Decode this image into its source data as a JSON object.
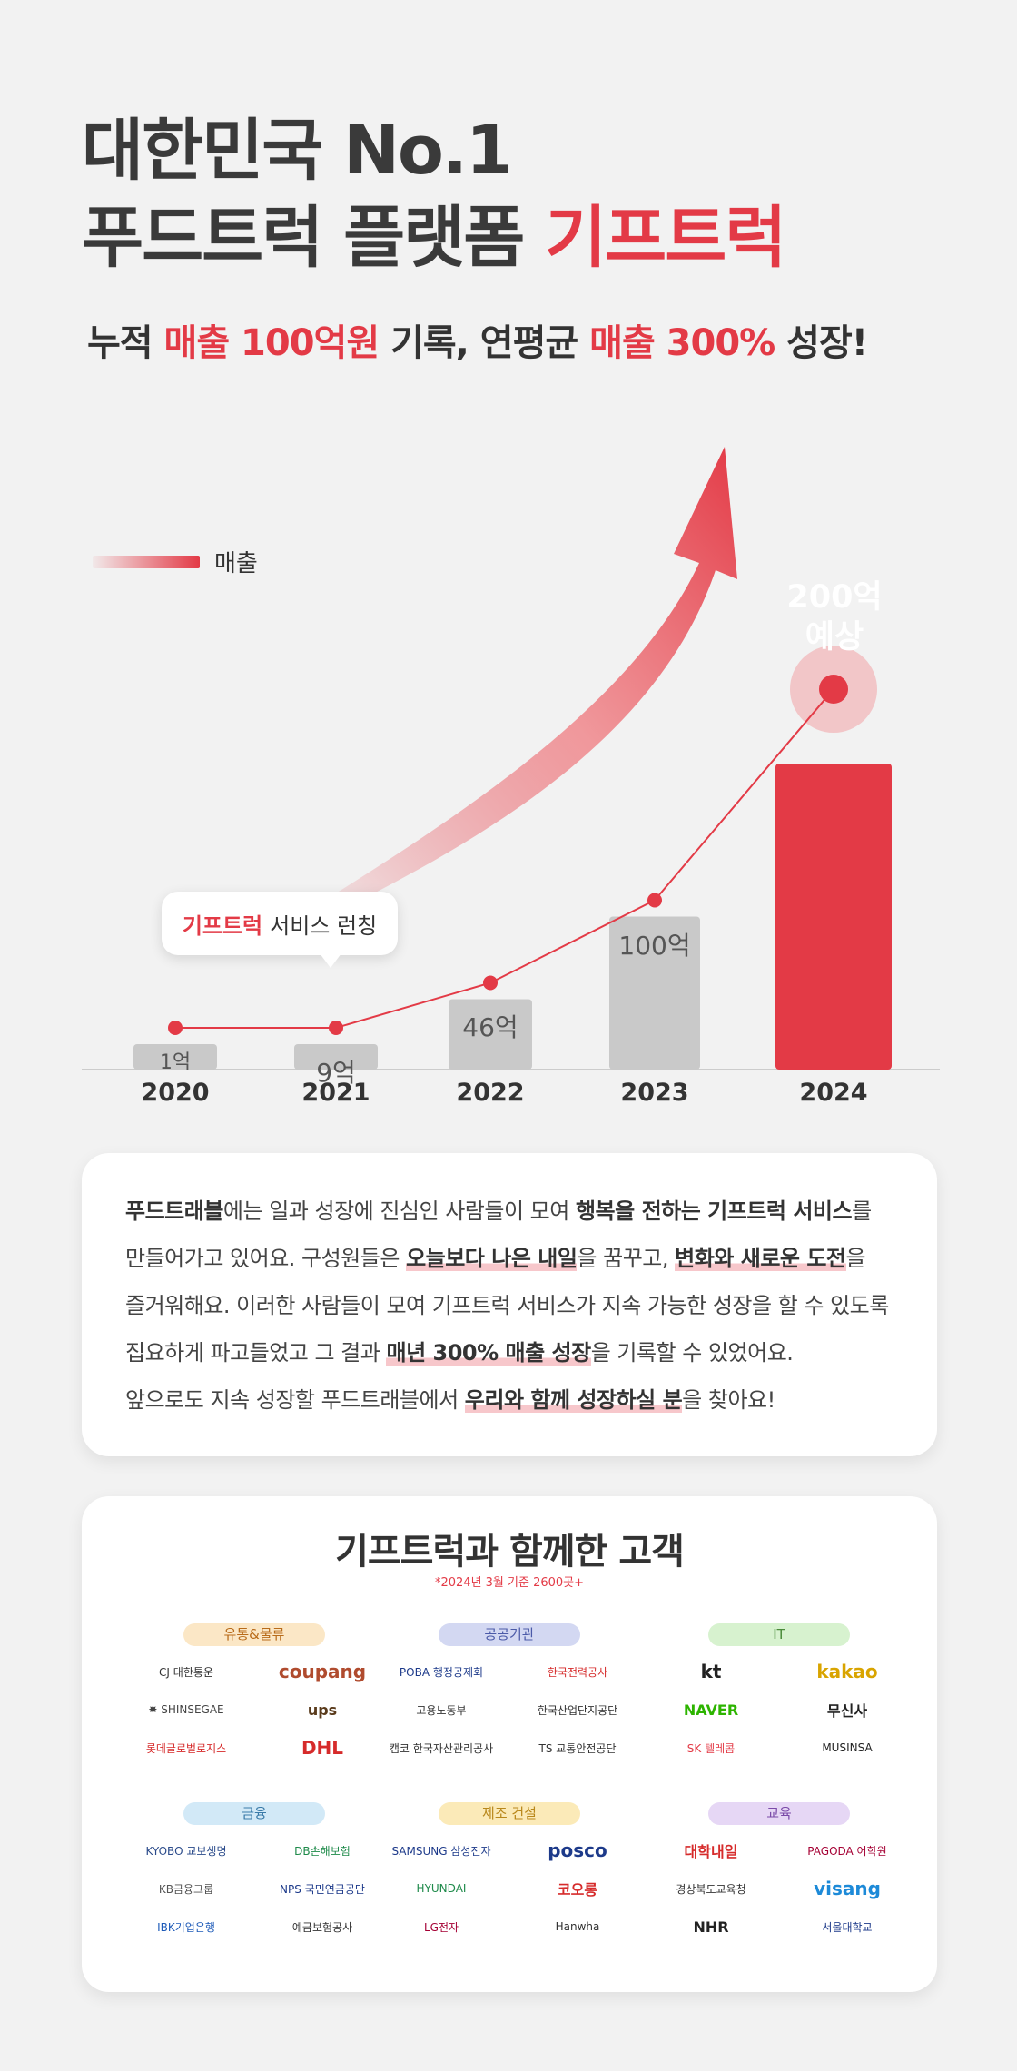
{
  "hero": {
    "line1": "대한민국 No.1",
    "line2_prefix": "푸드트럭 플랫폼 ",
    "line2_accent": "기프트럭"
  },
  "subtitle": {
    "p1": "누적 ",
    "r1": "매출 100억원",
    "p2": " 기록, 연평균 ",
    "r2": "매출 300%",
    "p3": " 성장!"
  },
  "colors": {
    "accent": "#e33a46",
    "bar": "#c9c9c9",
    "card_bg": "#ffffff",
    "page_bg": "#f2f2f2"
  },
  "chart_data": {
    "type": "bar",
    "categories": [
      "2020",
      "2021",
      "2022",
      "2023",
      "2024"
    ],
    "values": [
      1,
      9,
      46,
      100,
      200
    ],
    "value_labels": [
      "1억",
      "9억",
      "46억",
      "100억",
      "200억 예상"
    ],
    "forecast_label": [
      "200억",
      "예상"
    ],
    "legend": "매출",
    "annotation_brand": "기프트럭",
    "annotation_text": "서비스 런칭",
    "highlight_category": "2024"
  },
  "story": {
    "l1": [
      {
        "t": "푸드트래블",
        "s": "b"
      },
      {
        "t": "에는 일과 성장에 진심인 사람들이 모여 ",
        "s": ""
      },
      {
        "t": "행복을 전하는 기프트럭 서비스",
        "s": "b"
      },
      {
        "t": "를",
        "s": ""
      }
    ],
    "l2": [
      {
        "t": "만들어가고 있어요. 구성원들은 ",
        "s": ""
      },
      {
        "t": "오늘보다 나은 내일",
        "s": "u"
      },
      {
        "t": "을 꿈꾸고, ",
        "s": ""
      },
      {
        "t": "변화와 새로운 도전",
        "s": "u"
      },
      {
        "t": "을",
        "s": ""
      }
    ],
    "l3": [
      {
        "t": "즐거워해요. 이러한 사람들이 모여 기프트럭 서비스가 지속 가능한 성장을 할 수 있도록",
        "s": ""
      }
    ],
    "l4": [
      {
        "t": "집요하게 파고들었고 그 결과 ",
        "s": ""
      },
      {
        "t": "매년 300% 매출 성장",
        "s": "u"
      },
      {
        "t": "을 기록할 수 있었어요.",
        "s": ""
      }
    ],
    "l5": [
      {
        "t": "앞으로도 지속 성장할 푸드트래블에서 ",
        "s": ""
      },
      {
        "t": "우리와 함께 성장하실 분",
        "s": "u"
      },
      {
        "t": "을 찾아요!",
        "s": ""
      }
    ]
  },
  "clients": {
    "title": "기프트럭과 함께한 고객",
    "note": "*2024년 3월 기준 2600곳+",
    "categories": [
      {
        "label": "유통&물류",
        "pill_bg": "#fbe7c6",
        "pill_fg": "#b86b1a",
        "logos": [
          {
            "text": "CJ 대한통운",
            "color": "#333",
            "cls": ""
          },
          {
            "text": "coupang",
            "color": "#b04b2e",
            "cls": "lg-big"
          },
          {
            "text": "✸ SHINSEGAE",
            "color": "#444",
            "cls": ""
          },
          {
            "text": "ups",
            "color": "#5a3b1c",
            "cls": "lg-mid"
          },
          {
            "text": "롯데글로벌로지스",
            "color": "#d62b2b",
            "cls": ""
          },
          {
            "text": "DHL",
            "color": "#d62b2b",
            "cls": "lg-big"
          }
        ]
      },
      {
        "label": "공공기관",
        "pill_bg": "#d3d8f2",
        "pill_fg": "#4b5aa8",
        "logos": [
          {
            "text": "POBA 행정공제회",
            "color": "#1d3a8a",
            "cls": ""
          },
          {
            "text": "한국전력공사",
            "color": "#d62b2b",
            "cls": ""
          },
          {
            "text": "고용노동부",
            "color": "#333",
            "cls": ""
          },
          {
            "text": "한국산업단지공단",
            "color": "#333",
            "cls": ""
          },
          {
            "text": "캠코 한국자산관리공사",
            "color": "#333",
            "cls": ""
          },
          {
            "text": "TS 교통안전공단",
            "color": "#333",
            "cls": ""
          }
        ]
      },
      {
        "label": "IT",
        "pill_bg": "#d7f2cf",
        "pill_fg": "#4a8a3a",
        "logos": [
          {
            "text": "kt",
            "color": "#222",
            "cls": "lg-big"
          },
          {
            "text": "kakao",
            "color": "#d9a400",
            "cls": "lg-big"
          },
          {
            "text": "NAVER",
            "color": "#2db400",
            "cls": "lg-mid"
          },
          {
            "text": "무신사",
            "color": "#222",
            "cls": "lg-mid"
          },
          {
            "text": "SK 텔레콤",
            "color": "#e33a46",
            "cls": ""
          },
          {
            "text": "MUSINSA",
            "color": "#222",
            "cls": ""
          }
        ]
      },
      {
        "label": "금융",
        "pill_bg": "#d2e9f7",
        "pill_fg": "#3a7aa8",
        "logos": [
          {
            "text": "KYOBO 교보생명",
            "color": "#2a4a8a",
            "cls": ""
          },
          {
            "text": "DB손해보험",
            "color": "#1e8a4a",
            "cls": ""
          },
          {
            "text": "KB금융그룹",
            "color": "#555",
            "cls": ""
          },
          {
            "text": "NPS 국민연금공단",
            "color": "#1d3a8a",
            "cls": ""
          },
          {
            "text": "IBK기업은행",
            "color": "#1d5ab8",
            "cls": ""
          },
          {
            "text": "예금보험공사",
            "color": "#333",
            "cls": ""
          }
        ]
      },
      {
        "label": "제조 건설",
        "pill_bg": "#fbeab8",
        "pill_fg": "#b8871a",
        "logos": [
          {
            "text": "SAMSUNG 삼성전자",
            "color": "#1d3a8a",
            "cls": ""
          },
          {
            "text": "posco",
            "color": "#1d3a8a",
            "cls": "lg-big"
          },
          {
            "text": "HYUNDAI",
            "color": "#1e8a4a",
            "cls": ""
          },
          {
            "text": "코오롱",
            "color": "#d62b2b",
            "cls": "lg-mid"
          },
          {
            "text": "LG전자",
            "color": "#a50034",
            "cls": ""
          },
          {
            "text": "Hanwha",
            "color": "#333",
            "cls": ""
          }
        ]
      },
      {
        "label": "교육",
        "pill_bg": "#e6d7f5",
        "pill_fg": "#7a4aa8",
        "logos": [
          {
            "text": "대학내일",
            "color": "#d62b2b",
            "cls": "lg-mid"
          },
          {
            "text": "PAGODA 어학원",
            "color": "#a50034",
            "cls": ""
          },
          {
            "text": "경상북도교육청",
            "color": "#333",
            "cls": ""
          },
          {
            "text": "visang",
            "color": "#1d8ad8",
            "cls": "lg-big"
          },
          {
            "text": "NHR",
            "color": "#222",
            "cls": "lg-mid"
          },
          {
            "text": "서울대학교",
            "color": "#1d3a8a",
            "cls": ""
          }
        ]
      }
    ]
  }
}
